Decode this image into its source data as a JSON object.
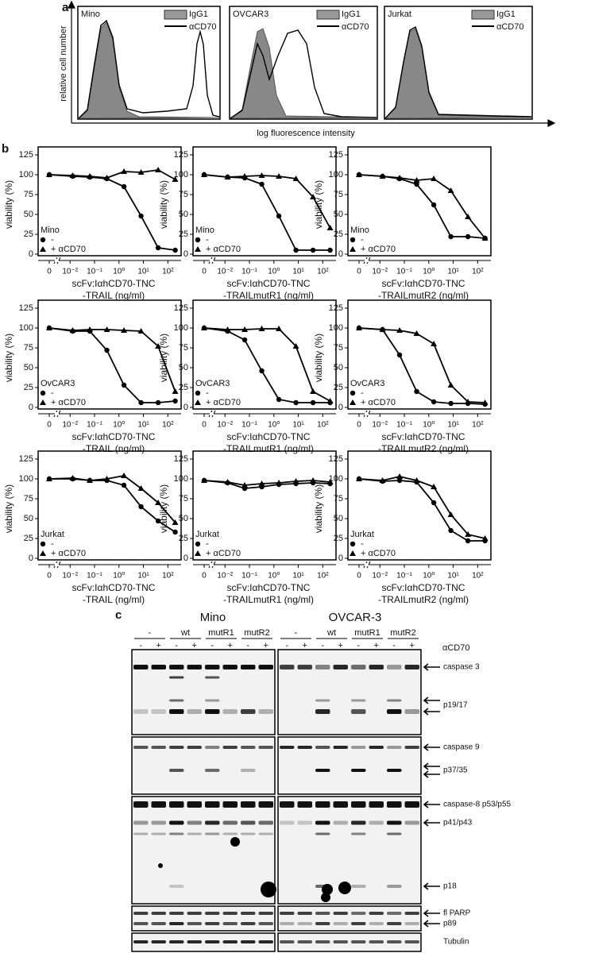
{
  "panel_a": {
    "label": "a",
    "y_label": "relative cell number",
    "x_label": "log fluorescence intensity",
    "plots": [
      {
        "cell": "Mino",
        "legend": [
          "IgG1",
          "αCD70"
        ]
      },
      {
        "cell": "OVCAR3",
        "legend": [
          "IgG1",
          "αCD70"
        ]
      },
      {
        "cell": "Jurkat",
        "legend": [
          "IgG1",
          "αCD70"
        ]
      }
    ]
  },
  "panel_b_label": "b",
  "chart_data": [
    {
      "type": "line",
      "legend_title": "Mino",
      "y_label": "viability (%)",
      "x_label": [
        "scFv:IαhCD70-TNC",
        "-TRAIL (ng/ml)"
      ],
      "x_scale": "log",
      "x": [
        0,
        0.0128,
        0.064,
        0.32,
        1.6,
        8,
        40,
        200
      ],
      "xlim": [
        0.004,
        300
      ],
      "xticks": [
        0,
        {
          "value": 0.01,
          "label": "10⁻²"
        },
        {
          "value": 0.1,
          "label": "10⁻¹"
        },
        {
          "value": 1,
          "label": "10⁰"
        },
        {
          "value": 10,
          "label": "10¹"
        },
        {
          "value": 100,
          "label": "10²"
        }
      ],
      "ylim": [
        0,
        125
      ],
      "yticks": [
        0,
        25,
        50,
        75,
        100,
        125
      ],
      "series": [
        {
          "name": "-",
          "marker": "circle",
          "color": "#000000",
          "values": [
            100,
            98,
            97,
            95,
            85,
            48,
            8,
            5
          ]
        },
        {
          "name": "+ αCD70",
          "marker": "triangle",
          "color": "#000000",
          "values": [
            100,
            99,
            98,
            96,
            104,
            103,
            106,
            94
          ]
        }
      ]
    },
    {
      "type": "line",
      "legend_title": "Mino",
      "y_label": "viability (%)",
      "x_label": [
        "scFv:IαhCD70-TNC",
        "-TRAILmutR1 (ng/ml)"
      ],
      "x_scale": "log",
      "x": [
        0,
        0.0128,
        0.064,
        0.32,
        1.6,
        8,
        40,
        200
      ],
      "xlim": [
        0.004,
        300
      ],
      "xticks": [
        0,
        {
          "value": 0.01,
          "label": "10⁻²"
        },
        {
          "value": 0.1,
          "label": "10⁻¹"
        },
        {
          "value": 1,
          "label": "10⁰"
        },
        {
          "value": 10,
          "label": "10¹"
        },
        {
          "value": 100,
          "label": "10²"
        }
      ],
      "ylim": [
        0,
        125
      ],
      "yticks": [
        0,
        25,
        50,
        75,
        100,
        125
      ],
      "series": [
        {
          "name": "-",
          "marker": "circle",
          "color": "#000000",
          "values": [
            100,
            97,
            96,
            88,
            48,
            5,
            5,
            5
          ]
        },
        {
          "name": "+ αCD70",
          "marker": "triangle",
          "color": "#000000",
          "values": [
            100,
            97,
            98,
            99,
            98,
            95,
            72,
            33
          ]
        }
      ]
    },
    {
      "type": "line",
      "legend_title": "Mino",
      "y_label": "viability (%)",
      "x_label": [
        "scFv:IαhCD70-TNC",
        "-TRAILmutR2 (ng/ml)"
      ],
      "x_scale": "log",
      "x": [
        0,
        0.0128,
        0.064,
        0.32,
        1.6,
        8,
        40,
        200
      ],
      "xlim": [
        0.004,
        300
      ],
      "xticks": [
        0,
        {
          "value": 0.01,
          "label": "10⁻²"
        },
        {
          "value": 0.1,
          "label": "10⁻¹"
        },
        {
          "value": 1,
          "label": "10⁰"
        },
        {
          "value": 10,
          "label": "10¹"
        },
        {
          "value": 100,
          "label": "10²"
        }
      ],
      "ylim": [
        0,
        125
      ],
      "yticks": [
        0,
        25,
        50,
        75,
        100,
        125
      ],
      "series": [
        {
          "name": "-",
          "marker": "circle",
          "color": "#000000",
          "values": [
            100,
            98,
            95,
            88,
            62,
            22,
            22,
            20
          ]
        },
        {
          "name": "+ αCD70",
          "marker": "triangle",
          "color": "#000000",
          "values": [
            100,
            98,
            96,
            93,
            95,
            80,
            47,
            20
          ]
        }
      ]
    },
    {
      "type": "line",
      "legend_title": "OvCAR3",
      "y_label": "viability (%)",
      "x_label": [
        "scFv:IαhCD70-TNC",
        "-TRAIL (ng/ml)"
      ],
      "x_scale": "log",
      "x": [
        0,
        0.0128,
        0.064,
        0.32,
        1.6,
        8,
        40,
        200
      ],
      "xlim": [
        0.004,
        300
      ],
      "xticks": [
        0,
        {
          "value": 0.01,
          "label": "10⁻²"
        },
        {
          "value": 0.1,
          "label": "10⁻¹"
        },
        {
          "value": 1,
          "label": "10⁰"
        },
        {
          "value": 10,
          "label": "10¹"
        },
        {
          "value": 100,
          "label": "10²"
        }
      ],
      "ylim": [
        0,
        125
      ],
      "yticks": [
        0,
        25,
        50,
        75,
        100,
        125
      ],
      "series": [
        {
          "name": "-",
          "marker": "circle",
          "color": "#000000",
          "values": [
            100,
            96,
            96,
            72,
            28,
            6,
            6,
            8
          ]
        },
        {
          "name": "+ αCD70",
          "marker": "triangle",
          "color": "#000000",
          "values": [
            100,
            97,
            98,
            98,
            97,
            96,
            77,
            20
          ]
        }
      ]
    },
    {
      "type": "line",
      "legend_title": "OvCAR3",
      "y_label": "viability (%)",
      "x_label": [
        "scFv:IαhCD70-TNC",
        "-TRAILmutR1 (ng/ml)"
      ],
      "x_scale": "log",
      "x": [
        0,
        0.0128,
        0.064,
        0.32,
        1.6,
        8,
        40,
        200
      ],
      "xlim": [
        0.004,
        300
      ],
      "xticks": [
        0,
        {
          "value": 0.01,
          "label": "10⁻²"
        },
        {
          "value": 0.1,
          "label": "10⁻¹"
        },
        {
          "value": 1,
          "label": "10⁰"
        },
        {
          "value": 10,
          "label": "10¹"
        },
        {
          "value": 100,
          "label": "10²"
        }
      ],
      "ylim": [
        0,
        125
      ],
      "yticks": [
        0,
        25,
        50,
        75,
        100,
        125
      ],
      "series": [
        {
          "name": "-",
          "marker": "circle",
          "color": "#000000",
          "values": [
            100,
            96,
            85,
            46,
            10,
            6,
            6,
            6
          ]
        },
        {
          "name": "+ αCD70",
          "marker": "triangle",
          "color": "#000000",
          "values": [
            100,
            98,
            98,
            99,
            99,
            77,
            20,
            8
          ]
        }
      ]
    },
    {
      "type": "line",
      "legend_title": "OvCAR3",
      "y_label": "viability (%)",
      "x_label": [
        "scFv:IαhCD70-TNC",
        "-TRAILmutR2 (ng/ml)"
      ],
      "x_scale": "log",
      "x": [
        0,
        0.0128,
        0.064,
        0.32,
        1.6,
        8,
        40,
        200
      ],
      "xlim": [
        0.004,
        300
      ],
      "xticks": [
        0,
        {
          "value": 0.01,
          "label": "10⁻²"
        },
        {
          "value": 0.1,
          "label": "10⁻¹"
        },
        {
          "value": 1,
          "label": "10⁰"
        },
        {
          "value": 10,
          "label": "10¹"
        },
        {
          "value": 100,
          "label": "10²"
        }
      ],
      "ylim": [
        0,
        125
      ],
      "yticks": [
        0,
        25,
        50,
        75,
        100,
        125
      ],
      "series": [
        {
          "name": "-",
          "marker": "circle",
          "color": "#000000",
          "values": [
            100,
            98,
            66,
            20,
            7,
            5,
            5,
            4
          ]
        },
        {
          "name": "+ αCD70",
          "marker": "triangle",
          "color": "#000000",
          "values": [
            100,
            98,
            97,
            93,
            80,
            28,
            7,
            6
          ]
        }
      ]
    },
    {
      "type": "line",
      "legend_title": "Jurkat",
      "y_label": "viability (%)",
      "x_label": [
        "scFv:IαhCD70-TNC",
        "-TRAIL (ng/ml)"
      ],
      "x_scale": "log",
      "x": [
        0,
        0.0128,
        0.064,
        0.32,
        1.6,
        8,
        40,
        200
      ],
      "xlim": [
        0.004,
        300
      ],
      "xticks": [
        0,
        {
          "value": 0.01,
          "label": "10⁻²"
        },
        {
          "value": 0.1,
          "label": "10⁻¹"
        },
        {
          "value": 1,
          "label": "10⁰"
        },
        {
          "value": 10,
          "label": "10¹"
        },
        {
          "value": 100,
          "label": "10²"
        }
      ],
      "ylim": [
        0,
        125
      ],
      "yticks": [
        0,
        25,
        50,
        75,
        100,
        125
      ],
      "series": [
        {
          "name": "-",
          "marker": "circle",
          "color": "#000000",
          "values": [
            100,
            100,
            98,
            98,
            92,
            65,
            47,
            33
          ]
        },
        {
          "name": "+ αCD70",
          "marker": "triangle",
          "color": "#000000",
          "values": [
            100,
            101,
            98,
            100,
            104,
            88,
            70,
            45
          ]
        }
      ]
    },
    {
      "type": "line",
      "legend_title": "Jurkat",
      "y_label": "viability (%)",
      "x_label": [
        "scFv:IαhCD70-TNC",
        "-TRAILmutR1 (ng/ml)"
      ],
      "x_scale": "log",
      "x": [
        0,
        0.0128,
        0.064,
        0.32,
        1.6,
        8,
        40,
        200
      ],
      "xlim": [
        0.004,
        300
      ],
      "xticks": [
        0,
        {
          "value": 0.01,
          "label": "10⁻²"
        },
        {
          "value": 0.1,
          "label": "10⁻¹"
        },
        {
          "value": 1,
          "label": "10⁰"
        },
        {
          "value": 10,
          "label": "10¹"
        },
        {
          "value": 100,
          "label": "10²"
        }
      ],
      "ylim": [
        0,
        125
      ],
      "yticks": [
        0,
        25,
        50,
        75,
        100,
        125
      ],
      "series": [
        {
          "name": "-",
          "marker": "circle",
          "color": "#000000",
          "values": [
            98,
            95,
            88,
            90,
            93,
            94,
            95,
            94
          ]
        },
        {
          "name": "+ αCD70",
          "marker": "triangle",
          "color": "#000000",
          "values": [
            98,
            96,
            92,
            94,
            95,
            97,
            98,
            96
          ]
        }
      ]
    },
    {
      "type": "line",
      "legend_title": "Jurkat",
      "y_label": "viability (%)",
      "x_label": [
        "scFv:IαhCD70-TNC",
        "-TRAILmutR2 (ng/ml)"
      ],
      "x_scale": "log",
      "x": [
        0,
        0.0128,
        0.064,
        0.32,
        1.6,
        8,
        40,
        200
      ],
      "xlim": [
        0.004,
        300
      ],
      "xticks": [
        0,
        {
          "value": 0.01,
          "label": "10⁻²"
        },
        {
          "value": 0.1,
          "label": "10⁻¹"
        },
        {
          "value": 1,
          "label": "10⁰"
        },
        {
          "value": 10,
          "label": "10¹"
        },
        {
          "value": 100,
          "label": "10²"
        }
      ],
      "ylim": [
        0,
        125
      ],
      "yticks": [
        0,
        25,
        50,
        75,
        100,
        125
      ],
      "series": [
        {
          "name": "-",
          "marker": "circle",
          "color": "#000000",
          "values": [
            100,
            97,
            98,
            96,
            70,
            35,
            22,
            22
          ]
        },
        {
          "name": "+ αCD70",
          "marker": "triangle",
          "color": "#000000",
          "values": [
            100,
            98,
            103,
            98,
            90,
            55,
            30,
            25
          ]
        }
      ]
    }
  ],
  "panel_c": {
    "label": "c",
    "cells": [
      "Mino",
      "OVCAR-3"
    ],
    "treatments": [
      "-",
      "wt",
      "mutR1",
      "mutR2"
    ],
    "lane_signs": [
      "-",
      "+"
    ],
    "antibody": "αCD70",
    "bands": [
      "caspase 3",
      "p19/17",
      "caspase 9",
      "p37/35",
      "caspase-8 p53/p55",
      "p41/p43",
      "p18",
      "fl PARP",
      "p89",
      "Tubulin"
    ]
  }
}
